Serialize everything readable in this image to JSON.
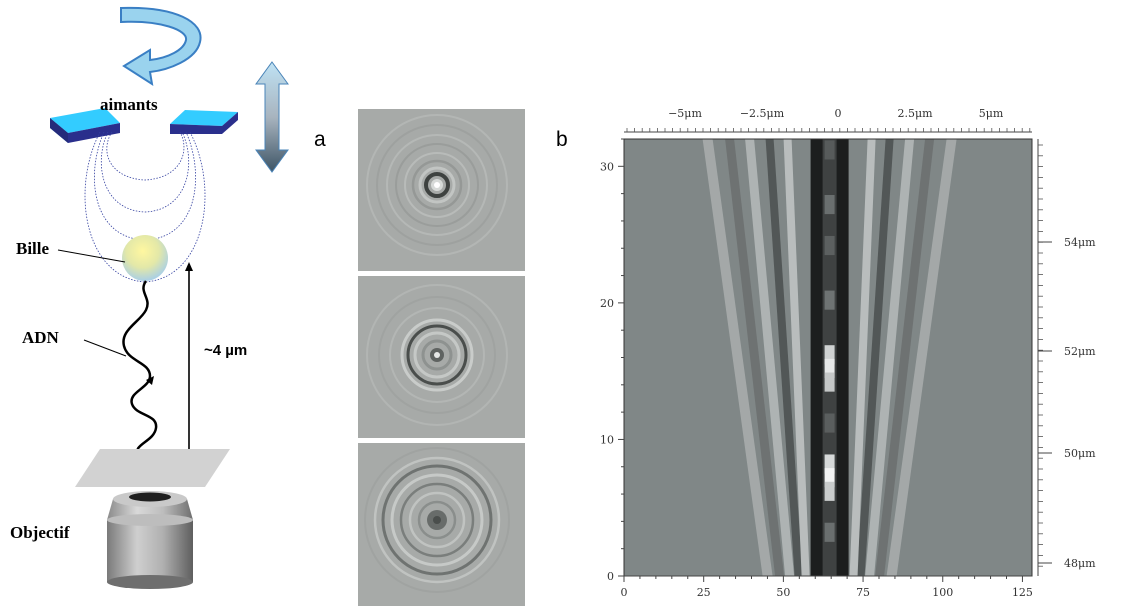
{
  "schematic": {
    "magnets_label": "aimants",
    "bead_label": "Bille",
    "dna_label": "ADN",
    "distance_label": "~4 µm",
    "objective_label": "Objectif"
  },
  "panel_a": {
    "label": "a"
  },
  "panel_b": {
    "label": "b",
    "top_ticks": [
      "−5μm",
      "−2.5μm",
      "0",
      "2.5μm",
      "5μm"
    ],
    "right_ticks": [
      "54μm",
      "52μm",
      "50μm",
      "48μm"
    ]
  },
  "chart_data": {
    "type": "heatmap",
    "x_ticks": [
      0,
      25,
      50,
      75,
      100,
      125
    ],
    "xlim": [
      0,
      128
    ],
    "y_ticks": [
      0,
      10,
      20,
      30
    ],
    "ylim": [
      0,
      32
    ],
    "top_axis_ticks": [
      "−5μm",
      "−2.5μm",
      "0",
      "2.5μm",
      "5μm"
    ],
    "right_axis_ticks": [
      "54μm",
      "52μm",
      "50μm",
      "48μm"
    ]
  },
  "colors": {
    "magnet_top": "#33ccff",
    "magnet_side": "#2a2f8c",
    "arrow_fill": "#9ad3ee",
    "arrow_stroke": "#3a7fc4",
    "heatmap_bg": "#808787"
  }
}
